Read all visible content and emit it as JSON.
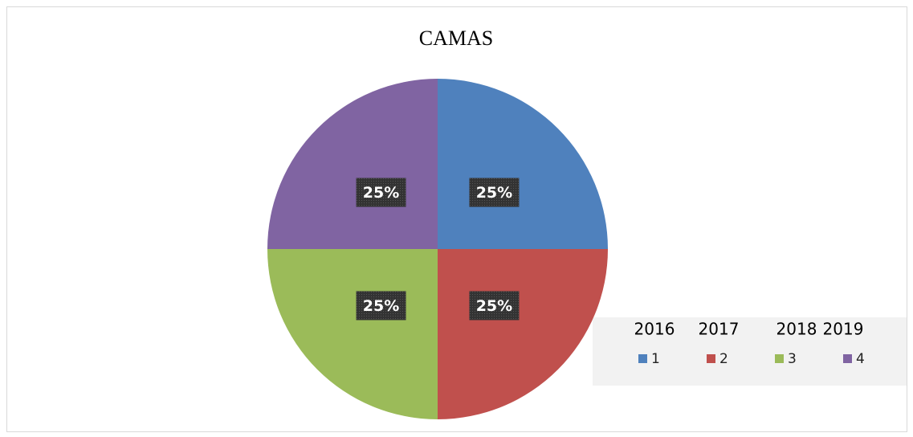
{
  "chart_data": {
    "type": "pie",
    "title": "CAMAS",
    "categories": [
      "1",
      "2",
      "3",
      "4"
    ],
    "values": [
      25,
      25,
      25,
      25
    ],
    "value_labels": [
      "25%",
      "25%",
      "25%",
      "25%"
    ],
    "colors": [
      "#4f81bd",
      "#c0504d",
      "#9bbb59",
      "#8064a2"
    ],
    "legend_header": [
      "2016",
      "2017",
      "2018",
      "2019"
    ],
    "legend": "bottom-right"
  }
}
